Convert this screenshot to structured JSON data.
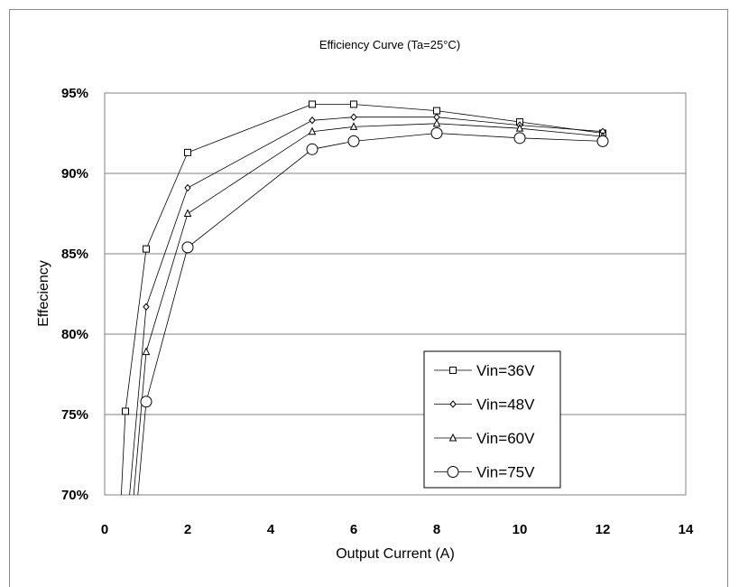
{
  "chart_data": {
    "type": "line",
    "title": "Efficiency Curve  (Ta=25°C)",
    "xlabel": "Output Current (A)",
    "ylabel": "Effeciency",
    "xlim": [
      0,
      14
    ],
    "ylim": [
      70,
      95
    ],
    "x_ticks": [
      "0",
      "2",
      "4",
      "6",
      "8",
      "10",
      "12",
      "14"
    ],
    "y_ticks": [
      "70%",
      "75%",
      "80%",
      "85%",
      "90%",
      "95%"
    ],
    "grid": "horizontal",
    "legend_position": "bottom-right",
    "series": [
      {
        "name": "Vin=36V",
        "marker": "square",
        "x": [
          0.4,
          0.5,
          1,
          2,
          5,
          6,
          8,
          10,
          12
        ],
        "y": [
          70,
          75.2,
          85.3,
          91.3,
          94.3,
          94.3,
          93.9,
          93.2,
          92.5
        ]
      },
      {
        "name": "Vin=48V",
        "marker": "diamond",
        "x": [
          0.6,
          1,
          2,
          5,
          6,
          8,
          10,
          12
        ],
        "y": [
          70,
          81.7,
          89.1,
          93.3,
          93.5,
          93.5,
          93.0,
          92.6
        ]
      },
      {
        "name": "Vin=60V",
        "marker": "triangle",
        "x": [
          0.7,
          1,
          2,
          5,
          6,
          8,
          10,
          12
        ],
        "y": [
          70,
          78.9,
          87.5,
          92.6,
          92.9,
          93.1,
          92.8,
          92.3
        ]
      },
      {
        "name": "Vin=75V",
        "marker": "circle",
        "x": [
          0.8,
          1,
          2,
          5,
          6,
          8,
          10,
          12
        ],
        "y": [
          70,
          75.8,
          85.4,
          91.5,
          92.0,
          92.5,
          92.2,
          92.0
        ]
      }
    ]
  }
}
